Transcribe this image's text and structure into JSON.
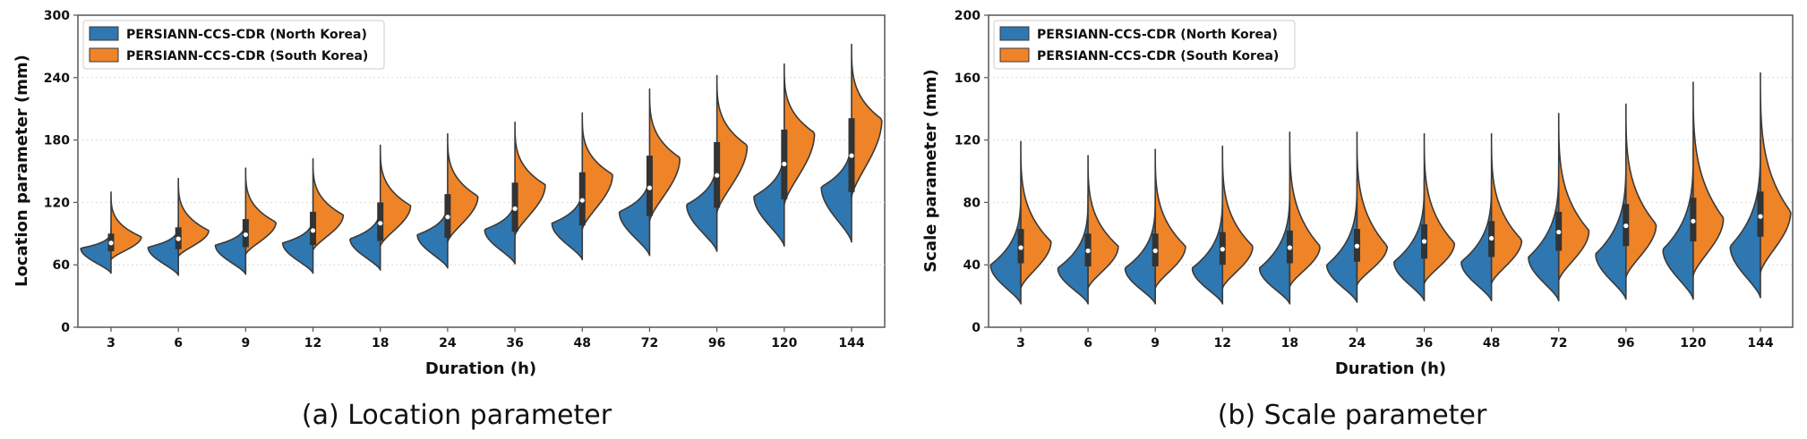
{
  "colors": {
    "north": "#2f77b0",
    "south": "#ee8427",
    "outline": "#3a3a3a",
    "box": "#333333"
  },
  "chart_data": [
    {
      "type": "violin",
      "subtitle": "(a) Location parameter",
      "xlabel": "Duration (h)",
      "ylabel": "Location parameter (mm)",
      "categories": [
        "3",
        "6",
        "9",
        "12",
        "18",
        "24",
        "36",
        "48",
        "72",
        "96",
        "120",
        "144"
      ],
      "ylim": [
        0,
        300
      ],
      "yticks": [
        0,
        60,
        120,
        180,
        240,
        300
      ],
      "ytick_labels": [
        "0",
        "60",
        "120",
        "180",
        "240",
        "300"
      ],
      "grid": true,
      "legend_position": "top-left",
      "series": [
        {
          "name": "PERSIANN-CCS-CDR (North Korea)",
          "side": "left",
          "min": [
            52,
            50,
            51,
            52,
            55,
            57,
            61,
            65,
            69,
            73,
            78,
            82
          ],
          "max": [
            95,
            100,
            105,
            110,
            120,
            125,
            130,
            140,
            155,
            170,
            180,
            190
          ],
          "mode": [
            76,
            77,
            79,
            81,
            85,
            89,
            94,
            100,
            111,
            118,
            126,
            135
          ],
          "width": [
            0.45,
            0.45,
            0.45,
            0.45,
            0.45,
            0.45,
            0.45,
            0.45,
            0.45,
            0.45,
            0.45,
            0.45
          ]
        },
        {
          "name": "PERSIANN-CCS-CDR (South Korea)",
          "side": "right",
          "min": [
            65,
            68,
            70,
            74,
            78,
            82,
            88,
            94,
            102,
            110,
            118,
            125
          ],
          "max": [
            130,
            143,
            153,
            162,
            175,
            186,
            197,
            206,
            229,
            242,
            253,
            272
          ],
          "mode": [
            87,
            93,
            101,
            108,
            117,
            126,
            137,
            147,
            163,
            175,
            187,
            200
          ],
          "width": [
            0.45,
            0.45,
            0.45,
            0.45,
            0.45,
            0.45,
            0.45,
            0.45,
            0.45,
            0.45,
            0.45,
            0.45
          ]
        }
      ],
      "box": {
        "median": [
          81,
          85,
          89,
          93,
          100,
          106,
          114,
          122,
          134,
          146,
          157,
          165
        ],
        "q1": [
          73,
          75,
          77,
          79,
          83,
          86,
          92,
          98,
          107,
          115,
          123,
          130
        ],
        "q3": [
          90,
          96,
          104,
          111,
          120,
          128,
          139,
          149,
          165,
          178,
          190,
          201
        ]
      }
    },
    {
      "type": "violin",
      "subtitle": "(b) Scale parameter",
      "xlabel": "Duration (h)",
      "ylabel": "Scale parameter (mm)",
      "categories": [
        "3",
        "6",
        "9",
        "12",
        "18",
        "24",
        "36",
        "48",
        "72",
        "96",
        "120",
        "144"
      ],
      "ylim": [
        0,
        200
      ],
      "yticks": [
        0,
        40,
        80,
        120,
        160,
        200
      ],
      "ytick_labels": [
        "0",
        "40",
        "80",
        "120",
        "160",
        "200"
      ],
      "grid": true,
      "legend_position": "top-left",
      "series": [
        {
          "name": "PERSIANN-CCS-CDR (North Korea)",
          "side": "left",
          "min": [
            15,
            15,
            15,
            15,
            15,
            16,
            17,
            17,
            17,
            18,
            18,
            19
          ],
          "max": [
            90,
            85,
            85,
            88,
            92,
            95,
            95,
            95,
            105,
            110,
            115,
            120
          ],
          "mode": [
            40,
            38,
            38,
            38,
            38,
            40,
            42,
            42,
            45,
            47,
            50,
            52
          ],
          "width": [
            0.45,
            0.45,
            0.45,
            0.45,
            0.45,
            0.45,
            0.45,
            0.45,
            0.45,
            0.45,
            0.45,
            0.45
          ]
        },
        {
          "name": "PERSIANN-CCS-CDR (South Korea)",
          "side": "right",
          "min": [
            25,
            25,
            25,
            25,
            26,
            27,
            28,
            28,
            30,
            32,
            33,
            35
          ],
          "max": [
            119,
            110,
            114,
            116,
            125,
            125,
            124,
            124,
            137,
            143,
            157,
            163
          ],
          "mode": [
            55,
            52,
            52,
            52,
            52,
            52,
            54,
            56,
            62,
            66,
            70,
            74
          ],
          "width": [
            0.45,
            0.45,
            0.45,
            0.45,
            0.45,
            0.45,
            0.45,
            0.45,
            0.45,
            0.45,
            0.45,
            0.45
          ]
        }
      ],
      "box": {
        "median": [
          51,
          49,
          49,
          50,
          51,
          52,
          55,
          57,
          61,
          65,
          68,
          71
        ],
        "q1": [
          41,
          39,
          39,
          40,
          41,
          42,
          44,
          45,
          49,
          52,
          55,
          58
        ],
        "q3": [
          63,
          60,
          60,
          61,
          62,
          63,
          66,
          68,
          74,
          79,
          83,
          87
        ]
      }
    }
  ]
}
